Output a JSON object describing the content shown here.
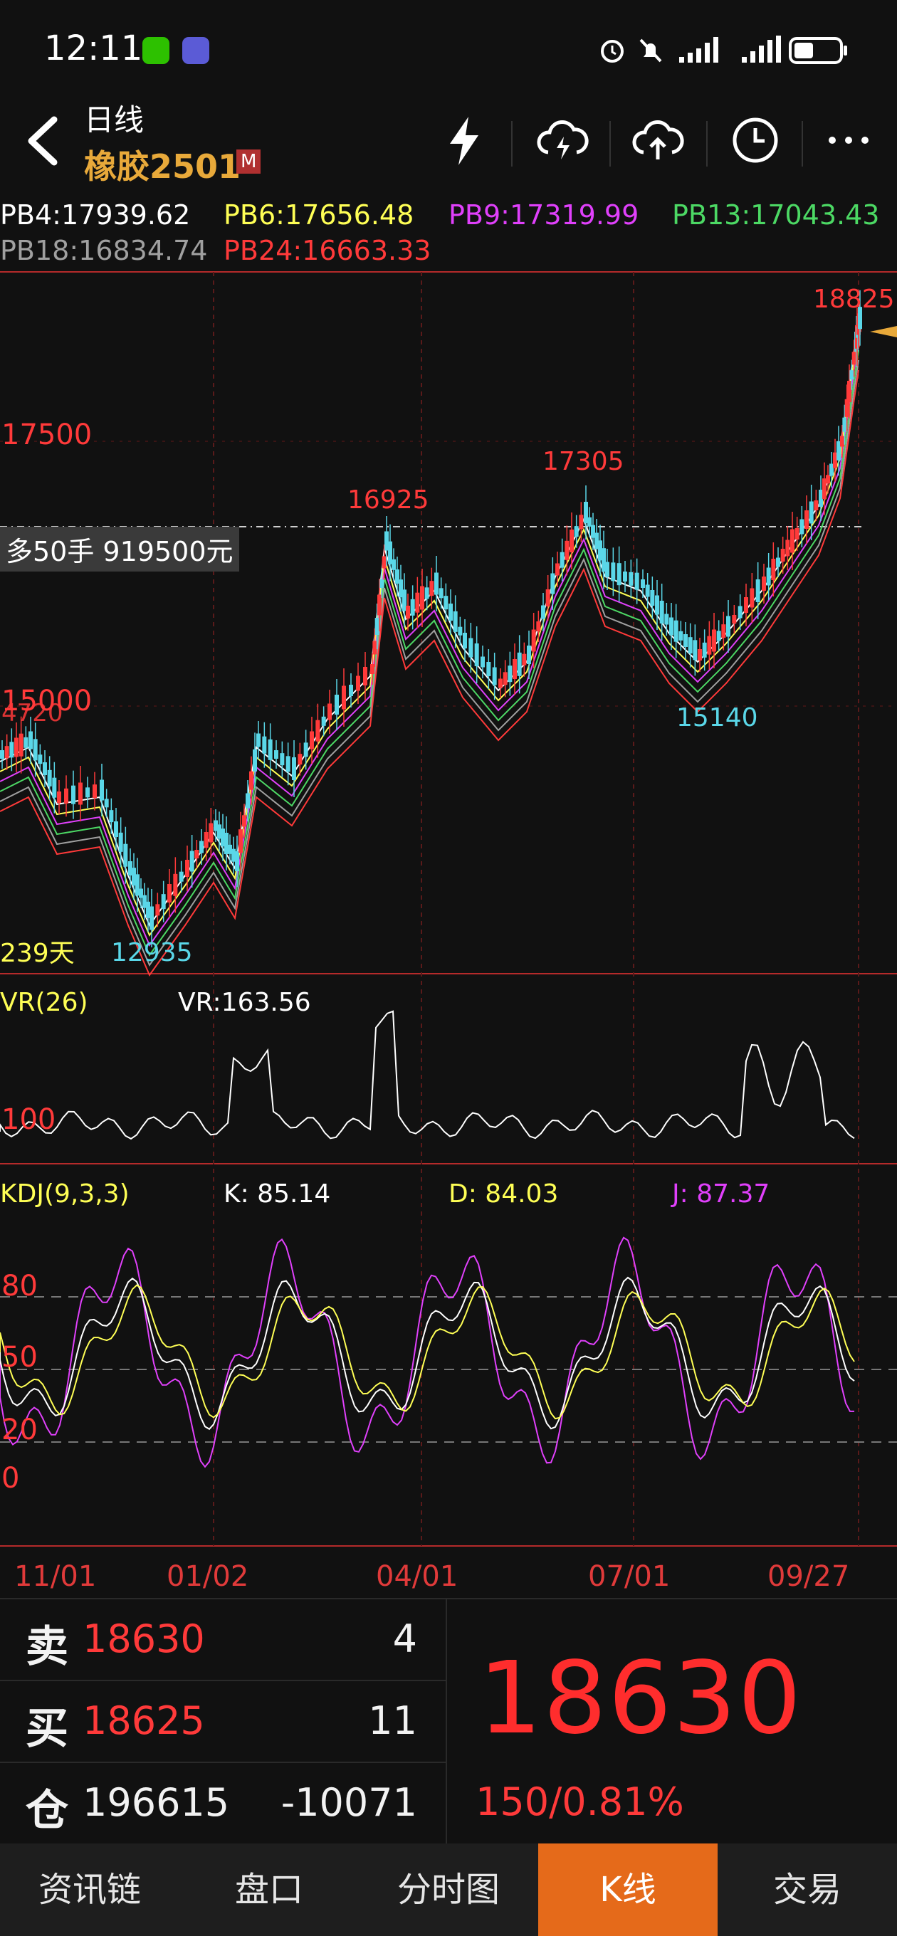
{
  "status_bar": {
    "time": "12:11"
  },
  "header": {
    "period": "日线",
    "contract": "橡胶2501",
    "badge": "M"
  },
  "ma_legend": [
    {
      "label": "PB4:17939.62",
      "color": "#ffffff"
    },
    {
      "label": "PB6:17656.48",
      "color": "#ffff55"
    },
    {
      "label": "PB9:17319.99",
      "color": "#e040fb"
    },
    {
      "label": "PB13:17043.43",
      "color": "#4cd964"
    },
    {
      "label": "PB18:16834.74",
      "color": "#a0a0a0"
    },
    {
      "label": "PB24:16663.33",
      "color": "#ff3a3a"
    }
  ],
  "main_chart": {
    "price_labels": [
      "17500",
      "15000"
    ],
    "high_left_label": "4720",
    "annotations": [
      "16925",
      "17305",
      "18825",
      "15140",
      "12935"
    ],
    "position_note": "多50手  919500元",
    "days_label": "239天"
  },
  "vr": {
    "title": "VR(26)",
    "value": "VR:163.56",
    "ref_label": "100"
  },
  "kdj": {
    "title": "KDJ(9,3,3)",
    "k": "K: 85.14",
    "d": "D: 84.03",
    "j": "J: 87.37",
    "levels": [
      "80",
      "50",
      "20",
      "0"
    ]
  },
  "x_axis": [
    "11/01",
    "01/02",
    "04/01",
    "07/01",
    "09/27"
  ],
  "order_book": [
    {
      "key": "卖",
      "price": "18630",
      "qty": "4"
    },
    {
      "key": "买",
      "price": "18625",
      "qty": "11"
    },
    {
      "key": "仓",
      "price": "196615",
      "qty": "-10071"
    }
  ],
  "last_price": "18630",
  "change": "150/0.81%",
  "tabs": [
    {
      "label": "资讯链",
      "active": false
    },
    {
      "label": "盘口",
      "active": false
    },
    {
      "label": "分时图",
      "active": false
    },
    {
      "label": "K线",
      "active": true
    },
    {
      "label": "交易",
      "active": false
    }
  ],
  "colors": {
    "up": "#ff3a3a",
    "down": "#5ad7e8",
    "accent": "#e56a1a",
    "gold": "#e8a93a"
  }
}
